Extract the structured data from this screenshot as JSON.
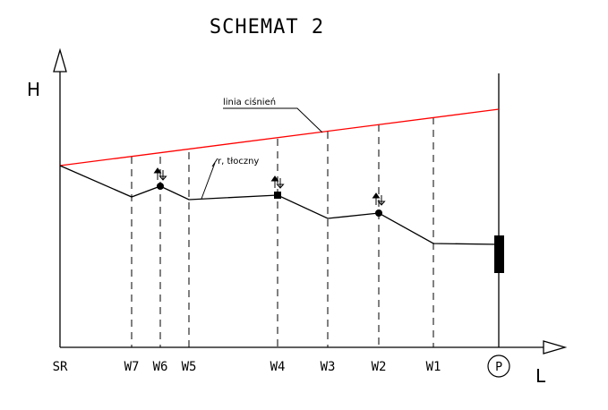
{
  "title": "SCHEMAT 2",
  "axes": {
    "y_label": "H",
    "x_label": "L"
  },
  "pressure_line_label": "linia ciśnień",
  "pipe_label": "r, tłoczny",
  "stations": [
    "SR",
    "W7",
    "W6",
    "W5",
    "W4",
    "W3",
    "W2",
    "W1"
  ],
  "pump_label": "P",
  "colors": {
    "pressure_line": "#ff0000",
    "lines": "#000000"
  }
}
